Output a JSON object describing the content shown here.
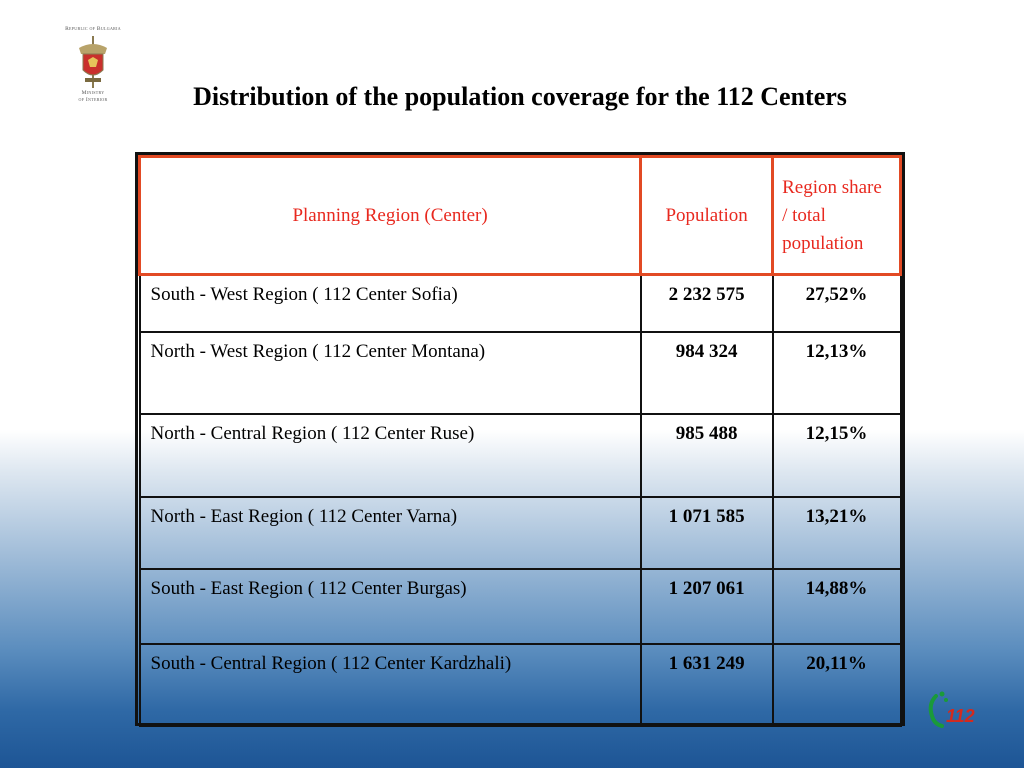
{
  "emblem": {
    "caption_top": "Republic of Bulgaria",
    "caption_bottom_line1": "Ministry",
    "caption_bottom_line2": "of Interior",
    "icon": "coat-of-arms-icon"
  },
  "title": "Distribution of the population coverage for the 112 Centers",
  "table": {
    "headers": {
      "region": "Planning Region (Center)",
      "population": "Population",
      "share": "Region share / total population"
    },
    "rows": [
      {
        "region": "South - West Region ( 112 Center Sofia)",
        "population": "2 232 575",
        "share": "27,52%"
      },
      {
        "region": "North - West Region ( 112 Center Montana)",
        "population": "984 324",
        "share": "12,13%"
      },
      {
        "region": "North - Central Region ( 112 Center Ruse)",
        "population": "985 488",
        "share": "12,15%"
      },
      {
        "region": "North - East Region ( 112 Center Varna)",
        "population": "1 071 585",
        "share": "13,21%"
      },
      {
        "region": "South - East Region ( 112 Center Burgas)",
        "population": "1 207 061",
        "share": "14,88%"
      },
      {
        "region": "South - Central Region ( 112 Center Kardzhali)",
        "population": "1 631 249",
        "share": "20,11%"
      }
    ]
  },
  "logo": {
    "text": "112",
    "icon": "emergency-112-logo-icon"
  },
  "colors": {
    "header_text": "#e8291f",
    "header_border": "#e24a24",
    "logo_red": "#d42a1e",
    "logo_green": "#1a9a3a"
  }
}
